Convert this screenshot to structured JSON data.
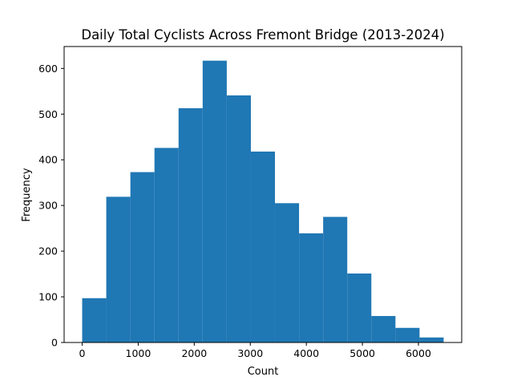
{
  "chart_data": {
    "type": "bar",
    "title": "Daily Total Cyclists Across Fremont Bridge (2013-2024)",
    "xlabel": "Count",
    "ylabel": "Frequency",
    "bin_edges": [
      0,
      430,
      860,
      1290,
      1720,
      2150,
      2580,
      3010,
      3440,
      3870,
      4300,
      4730,
      5160,
      5590,
      6020,
      6450
    ],
    "values": [
      97,
      319,
      373,
      426,
      513,
      617,
      541,
      418,
      305,
      239,
      275,
      151,
      58,
      32,
      11
    ],
    "xlim": [
      -322,
      6772
    ],
    "ylim": [
      0,
      648
    ],
    "xticks": [
      0,
      1000,
      2000,
      3000,
      4000,
      5000,
      6000
    ],
    "yticks": [
      0,
      100,
      200,
      300,
      400,
      500,
      600
    ],
    "grid": false,
    "bar_color": "#1f77b4"
  }
}
